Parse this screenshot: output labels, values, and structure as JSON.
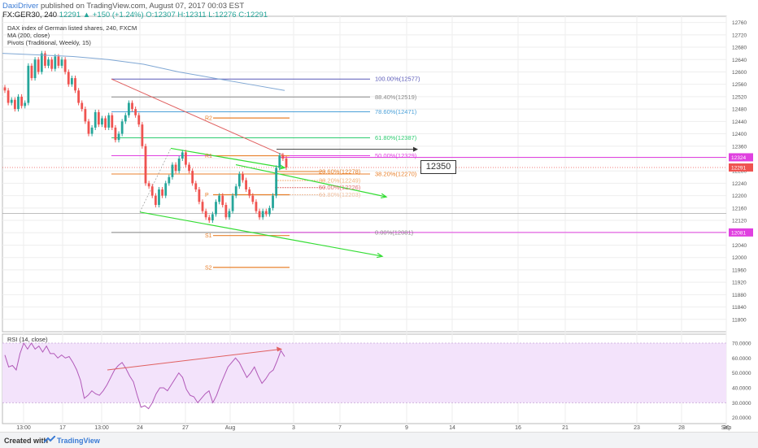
{
  "header": {
    "author": "DaxiDriver",
    "publish_text": "published on TradingView.com, August 07, 2017 00:03 EST",
    "symbol_line": "FX:GER30, 240",
    "ohlc_line": "12291 ▲ +150 (+1.24%) O:12307 H:12311 L:12276 C:12291"
  },
  "indicators": {
    "title": "DAX index of German listed shares, 240, FXCM",
    "ma": "MA (200, close)",
    "pivots": "Pivots (Traditional, Weekly, 15)",
    "rsi": "RSI (14, close)"
  },
  "footer": {
    "created_with": "Created with",
    "brand": "TradingView"
  },
  "colors": {
    "up": "#26a69a",
    "down": "#ef5350",
    "ma": "#7fa7d4",
    "pivot": "#e8812c",
    "channel": "#33dd33",
    "trend": "#e06060",
    "magenta": "#e040e0",
    "rsi": "#b158b8",
    "rsi_band": "#f3e3fb"
  },
  "chart_data": [
    {
      "type": "candlestick",
      "title": "DAX index of German listed shares, 240, FXCM",
      "x_ticks": [
        "13:00",
        "17",
        "13:00",
        "24",
        "27",
        "Aug",
        "3",
        "7",
        "9",
        "14",
        "16",
        "21",
        "23",
        "28",
        "30",
        "Sep"
      ],
      "ylim": [
        11760,
        12780
      ],
      "y_ticks": [
        11800,
        11840,
        11880,
        11920,
        11960,
        12000,
        12040,
        12080,
        12120,
        12160,
        12200,
        12240,
        12280,
        12320,
        12360,
        12400,
        12440,
        12480,
        12520,
        12560,
        12600,
        12640,
        12680,
        12720,
        12760
      ],
      "price_labels": [
        {
          "value": 12324,
          "text": "12324",
          "color": "#e040e0"
        },
        {
          "value": 12291,
          "text": "12291",
          "color": "#ef5350"
        },
        {
          "value": 12081,
          "text": "12081",
          "color": "#e040e0"
        }
      ],
      "closes": [
        12540,
        12500,
        12510,
        12480,
        12520,
        12490,
        12500,
        12620,
        12580,
        12640,
        12600,
        12660,
        12620,
        12640,
        12610,
        12650,
        12620,
        12640,
        12600,
        12560,
        12580,
        12540,
        12500,
        12480,
        12440,
        12400,
        12420,
        12470,
        12430,
        12450,
        12420,
        12460,
        12420,
        12380,
        12400,
        12440,
        12460,
        12500,
        12480,
        12460,
        12430,
        12360,
        12240,
        12230,
        12200,
        12170,
        12220,
        12200,
        12240,
        12260,
        12300,
        12280,
        12320,
        12340,
        12300,
        12280,
        12240,
        12220,
        12180,
        12150,
        12130,
        12120,
        12140,
        12180,
        12200,
        12170,
        12130,
        12150,
        12200,
        12230,
        12270,
        12250,
        12220,
        12200,
        12180,
        12150,
        12130,
        12150,
        12140,
        12160,
        12200,
        12290,
        12330,
        12320,
        12291
      ],
      "ma_200": [
        12660,
        12655,
        12650,
        12640,
        12625,
        12600,
        12580,
        12560,
        12540
      ],
      "fibonacci": {
        "levels": [
          {
            "ratio": "100.00%",
            "value": 12577
          },
          {
            "ratio": "88.40%",
            "value": 12519
          },
          {
            "ratio": "78.60%",
            "value": 12471
          },
          {
            "ratio": "61.80%",
            "value": 12387
          },
          {
            "ratio": "50.00%",
            "value": 12329
          },
          {
            "ratio": "38.20%",
            "value": 12270
          },
          {
            "ratio": "0.00%",
            "value": 12081
          }
        ],
        "inner_levels": [
          {
            "ratio": "23.60%",
            "value": 12278
          },
          {
            "ratio": "38.20%",
            "value": 12249
          },
          {
            "ratio": "50.00%",
            "value": 12226
          },
          {
            "ratio": "61.80%",
            "value": 12203
          }
        ]
      },
      "pivots": [
        {
          "label": "R2",
          "value": 12451
        },
        {
          "label": "R1",
          "value": 12329
        },
        {
          "label": "P",
          "value": 12203
        },
        {
          "label": "S1",
          "value": 12071
        },
        {
          "label": "S2",
          "value": 11968
        }
      ],
      "annotation": {
        "text": "12350",
        "value": 12350
      }
    },
    {
      "type": "line",
      "title": "RSI (14, close)",
      "ylim": [
        16,
        76
      ],
      "y_ticks": [
        20,
        30,
        40,
        50,
        60,
        70
      ],
      "y_tick_labels": [
        "20.0000",
        "30.0000",
        "40.0000",
        "50.0000",
        "60.0000",
        "70.0000"
      ],
      "band": [
        30,
        70
      ],
      "values": [
        62,
        54,
        55,
        52,
        63,
        70,
        66,
        70,
        66,
        68,
        64,
        68,
        63,
        63,
        60,
        62,
        60,
        61,
        57,
        52,
        45,
        33,
        35,
        38,
        36,
        35,
        38,
        42,
        47,
        52,
        55,
        57,
        53,
        48,
        44,
        35,
        27,
        28,
        26,
        30,
        36,
        40,
        40,
        38,
        42,
        46,
        50,
        47,
        39,
        35,
        34,
        30,
        33,
        36,
        38,
        30,
        35,
        42,
        48,
        54,
        57,
        60,
        57,
        52,
        47,
        50,
        54,
        48,
        43,
        46,
        50,
        52,
        58,
        65,
        61
      ]
    }
  ]
}
